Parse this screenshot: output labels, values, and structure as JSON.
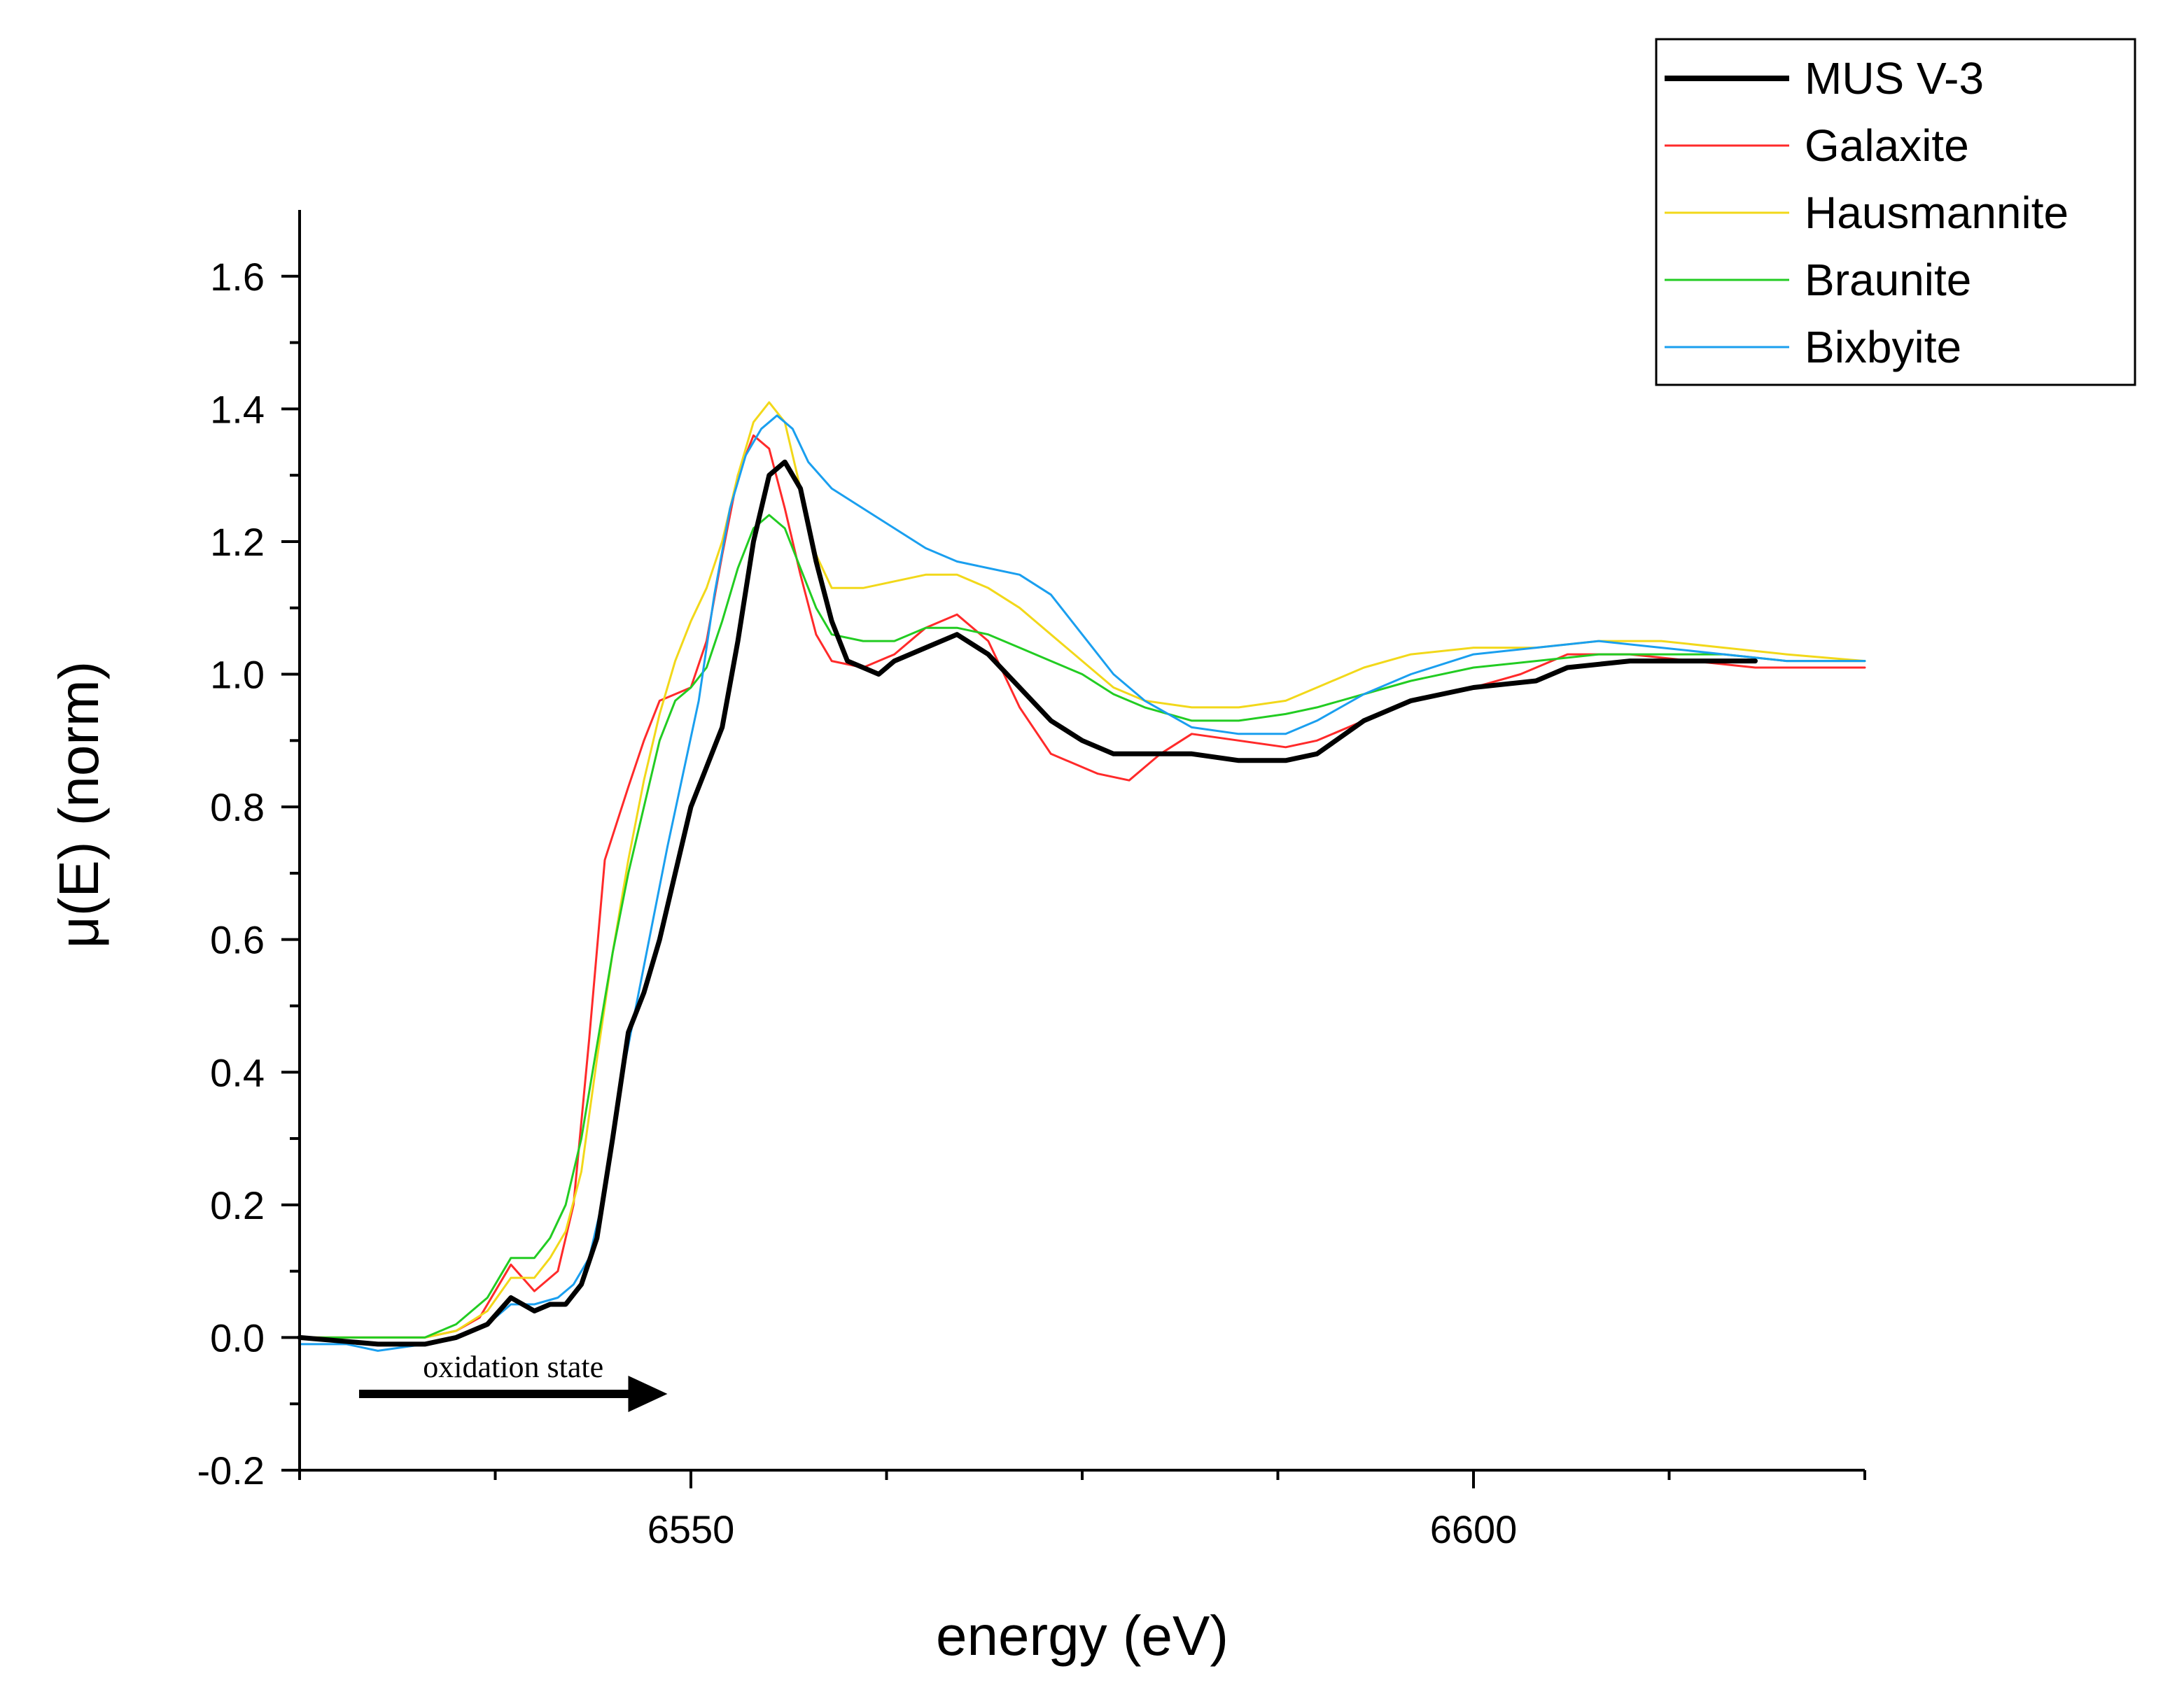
{
  "chart_data": {
    "type": "line",
    "title": "",
    "xlabel": "energy (eV)",
    "ylabel": "μ(E) (norm)",
    "xlim": [
      6525,
      6625
    ],
    "ylim": [
      -0.2,
      1.7
    ],
    "x_major_ticks": [
      6550,
      6600
    ],
    "x_tick_labels": [
      "6550",
      "6600"
    ],
    "y_major_ticks": [
      -0.2,
      0.0,
      0.2,
      0.4,
      0.6,
      0.8,
      1.0,
      1.2,
      1.4,
      1.6
    ],
    "y_tick_labels": [
      "-0.2",
      "0.0",
      "0.2",
      "0.4",
      "0.6",
      "0.8",
      "1.0",
      "1.2",
      "1.4",
      "1.6"
    ],
    "grid": false,
    "legend_position": "top-right",
    "annotation": {
      "text": "oxidation state",
      "arrow_from_x": 6528.8,
      "arrow_to_x": 6548.5,
      "arrow_y": -0.085
    },
    "series": [
      {
        "name": "MUS V-3",
        "color": "#000000",
        "bold": true,
        "points": [
          [
            6525,
            0.0
          ],
          [
            6530,
            -0.01
          ],
          [
            6533,
            -0.01
          ],
          [
            6535,
            0.0
          ],
          [
            6537,
            0.02
          ],
          [
            6538.5,
            0.06
          ],
          [
            6540,
            0.04
          ],
          [
            6541,
            0.05
          ],
          [
            6542,
            0.05
          ],
          [
            6543,
            0.08
          ],
          [
            6544,
            0.15
          ],
          [
            6545,
            0.3
          ],
          [
            6546,
            0.46
          ],
          [
            6547,
            0.52
          ],
          [
            6548,
            0.6
          ],
          [
            6549,
            0.7
          ],
          [
            6550,
            0.8
          ],
          [
            6551,
            0.86
          ],
          [
            6552,
            0.92
          ],
          [
            6553,
            1.05
          ],
          [
            6554,
            1.2
          ],
          [
            6555,
            1.3
          ],
          [
            6556,
            1.32
          ],
          [
            6557,
            1.28
          ],
          [
            6558,
            1.17
          ],
          [
            6559,
            1.08
          ],
          [
            6560,
            1.02
          ],
          [
            6561,
            1.01
          ],
          [
            6562,
            1.0
          ],
          [
            6563,
            1.02
          ],
          [
            6565,
            1.04
          ],
          [
            6567,
            1.06
          ],
          [
            6569,
            1.03
          ],
          [
            6571,
            0.98
          ],
          [
            6573,
            0.93
          ],
          [
            6575,
            0.9
          ],
          [
            6577,
            0.88
          ],
          [
            6579,
            0.88
          ],
          [
            6582,
            0.88
          ],
          [
            6585,
            0.87
          ],
          [
            6588,
            0.87
          ],
          [
            6590,
            0.88
          ],
          [
            6593,
            0.93
          ],
          [
            6596,
            0.96
          ],
          [
            6600,
            0.98
          ],
          [
            6604,
            0.99
          ],
          [
            6606,
            1.01
          ],
          [
            6610,
            1.02
          ],
          [
            6614,
            1.02
          ],
          [
            6618,
            1.02
          ]
        ]
      },
      {
        "name": "Galaxite",
        "color": "#ff2a2a",
        "bold": false,
        "points": [
          [
            6525,
            0.0
          ],
          [
            6533,
            0.0
          ],
          [
            6535,
            0.01
          ],
          [
            6536.5,
            0.03
          ],
          [
            6538.5,
            0.11
          ],
          [
            6540,
            0.07
          ],
          [
            6541.5,
            0.1
          ],
          [
            6542.5,
            0.2
          ],
          [
            6543.5,
            0.45
          ],
          [
            6544.5,
            0.72
          ],
          [
            6546,
            0.83
          ],
          [
            6547,
            0.9
          ],
          [
            6548,
            0.96
          ],
          [
            6549,
            0.97
          ],
          [
            6550,
            0.98
          ],
          [
            6551,
            1.05
          ],
          [
            6552,
            1.18
          ],
          [
            6553,
            1.3
          ],
          [
            6554,
            1.36
          ],
          [
            6555,
            1.34
          ],
          [
            6556,
            1.25
          ],
          [
            6557,
            1.15
          ],
          [
            6558,
            1.06
          ],
          [
            6559,
            1.02
          ],
          [
            6561,
            1.01
          ],
          [
            6563,
            1.03
          ],
          [
            6565,
            1.07
          ],
          [
            6567,
            1.09
          ],
          [
            6569,
            1.05
          ],
          [
            6571,
            0.95
          ],
          [
            6573,
            0.88
          ],
          [
            6576,
            0.85
          ],
          [
            6578,
            0.84
          ],
          [
            6580,
            0.88
          ],
          [
            6582,
            0.91
          ],
          [
            6585,
            0.9
          ],
          [
            6588,
            0.89
          ],
          [
            6590,
            0.9
          ],
          [
            6593,
            0.93
          ],
          [
            6596,
            0.96
          ],
          [
            6600,
            0.98
          ],
          [
            6603,
            1.0
          ],
          [
            6606,
            1.03
          ],
          [
            6610,
            1.03
          ],
          [
            6614,
            1.02
          ],
          [
            6618,
            1.01
          ],
          [
            6622,
            1.01
          ],
          [
            6625,
            1.01
          ]
        ]
      },
      {
        "name": "Hausmannite",
        "color": "#f2d81a",
        "bold": false,
        "points": [
          [
            6525,
            0.0
          ],
          [
            6533,
            0.0
          ],
          [
            6535,
            0.01
          ],
          [
            6537,
            0.04
          ],
          [
            6538.5,
            0.09
          ],
          [
            6540,
            0.09
          ],
          [
            6541,
            0.12
          ],
          [
            6542,
            0.16
          ],
          [
            6543,
            0.25
          ],
          [
            6544,
            0.42
          ],
          [
            6545,
            0.58
          ],
          [
            6546,
            0.72
          ],
          [
            6547,
            0.84
          ],
          [
            6548,
            0.94
          ],
          [
            6549,
            1.02
          ],
          [
            6550,
            1.08
          ],
          [
            6551,
            1.13
          ],
          [
            6552,
            1.2
          ],
          [
            6553,
            1.3
          ],
          [
            6554,
            1.38
          ],
          [
            6555,
            1.41
          ],
          [
            6556,
            1.38
          ],
          [
            6557,
            1.28
          ],
          [
            6558,
            1.18
          ],
          [
            6559,
            1.13
          ],
          [
            6561,
            1.13
          ],
          [
            6563,
            1.14
          ],
          [
            6565,
            1.15
          ],
          [
            6567,
            1.15
          ],
          [
            6569,
            1.13
          ],
          [
            6571,
            1.1
          ],
          [
            6573,
            1.06
          ],
          [
            6575,
            1.02
          ],
          [
            6577,
            0.98
          ],
          [
            6579,
            0.96
          ],
          [
            6582,
            0.95
          ],
          [
            6585,
            0.95
          ],
          [
            6588,
            0.96
          ],
          [
            6590,
            0.98
          ],
          [
            6593,
            1.01
          ],
          [
            6596,
            1.03
          ],
          [
            6600,
            1.04
          ],
          [
            6604,
            1.04
          ],
          [
            6608,
            1.05
          ],
          [
            6612,
            1.05
          ],
          [
            6616,
            1.04
          ],
          [
            6620,
            1.03
          ],
          [
            6625,
            1.02
          ]
        ]
      },
      {
        "name": "Braunite",
        "color": "#22cc22",
        "bold": false,
        "points": [
          [
            6525,
            0.0
          ],
          [
            6533,
            0.0
          ],
          [
            6535,
            0.02
          ],
          [
            6537,
            0.06
          ],
          [
            6538.5,
            0.12
          ],
          [
            6540,
            0.12
          ],
          [
            6541,
            0.15
          ],
          [
            6542,
            0.2
          ],
          [
            6543,
            0.3
          ],
          [
            6544,
            0.44
          ],
          [
            6545,
            0.58
          ],
          [
            6546,
            0.7
          ],
          [
            6547,
            0.8
          ],
          [
            6548,
            0.9
          ],
          [
            6549,
            0.96
          ],
          [
            6550,
            0.98
          ],
          [
            6551,
            1.01
          ],
          [
            6552,
            1.08
          ],
          [
            6553,
            1.16
          ],
          [
            6554,
            1.22
          ],
          [
            6555,
            1.24
          ],
          [
            6556,
            1.22
          ],
          [
            6557,
            1.16
          ],
          [
            6558,
            1.1
          ],
          [
            6559,
            1.06
          ],
          [
            6561,
            1.05
          ],
          [
            6563,
            1.05
          ],
          [
            6565,
            1.07
          ],
          [
            6567,
            1.07
          ],
          [
            6569,
            1.06
          ],
          [
            6571,
            1.04
          ],
          [
            6573,
            1.02
          ],
          [
            6575,
            1.0
          ],
          [
            6577,
            0.97
          ],
          [
            6579,
            0.95
          ],
          [
            6582,
            0.93
          ],
          [
            6585,
            0.93
          ],
          [
            6588,
            0.94
          ],
          [
            6590,
            0.95
          ],
          [
            6593,
            0.97
          ],
          [
            6596,
            0.99
          ],
          [
            6600,
            1.01
          ],
          [
            6604,
            1.02
          ],
          [
            6608,
            1.03
          ],
          [
            6612,
            1.03
          ],
          [
            6616,
            1.03
          ],
          [
            6620,
            1.02
          ],
          [
            6625,
            1.02
          ]
        ]
      },
      {
        "name": "Bixbyite",
        "color": "#1a9fef",
        "bold": false,
        "points": [
          [
            6525,
            -0.01
          ],
          [
            6528,
            -0.01
          ],
          [
            6530,
            -0.02
          ],
          [
            6533,
            -0.01
          ],
          [
            6535,
            0.0
          ],
          [
            6537,
            0.02
          ],
          [
            6538.5,
            0.05
          ],
          [
            6540,
            0.05
          ],
          [
            6541.5,
            0.06
          ],
          [
            6542.5,
            0.08
          ],
          [
            6543.5,
            0.12
          ],
          [
            6544.5,
            0.22
          ],
          [
            6545.5,
            0.38
          ],
          [
            6546.5,
            0.5
          ],
          [
            6547.5,
            0.62
          ],
          [
            6548.5,
            0.74
          ],
          [
            6549.5,
            0.85
          ],
          [
            6550.5,
            0.96
          ],
          [
            6551.5,
            1.12
          ],
          [
            6552.5,
            1.25
          ],
          [
            6553.5,
            1.33
          ],
          [
            6554.5,
            1.37
          ],
          [
            6555.5,
            1.39
          ],
          [
            6556.5,
            1.37
          ],
          [
            6557.5,
            1.32
          ],
          [
            6559,
            1.28
          ],
          [
            6561,
            1.25
          ],
          [
            6563,
            1.22
          ],
          [
            6565,
            1.19
          ],
          [
            6567,
            1.17
          ],
          [
            6569,
            1.16
          ],
          [
            6571,
            1.15
          ],
          [
            6573,
            1.12
          ],
          [
            6575,
            1.06
          ],
          [
            6577,
            1.0
          ],
          [
            6579,
            0.96
          ],
          [
            6582,
            0.92
          ],
          [
            6585,
            0.91
          ],
          [
            6588,
            0.91
          ],
          [
            6590,
            0.93
          ],
          [
            6593,
            0.97
          ],
          [
            6596,
            1.0
          ],
          [
            6600,
            1.03
          ],
          [
            6604,
            1.04
          ],
          [
            6608,
            1.05
          ],
          [
            6612,
            1.04
          ],
          [
            6616,
            1.03
          ],
          [
            6620,
            1.02
          ],
          [
            6625,
            1.02
          ]
        ]
      }
    ]
  }
}
